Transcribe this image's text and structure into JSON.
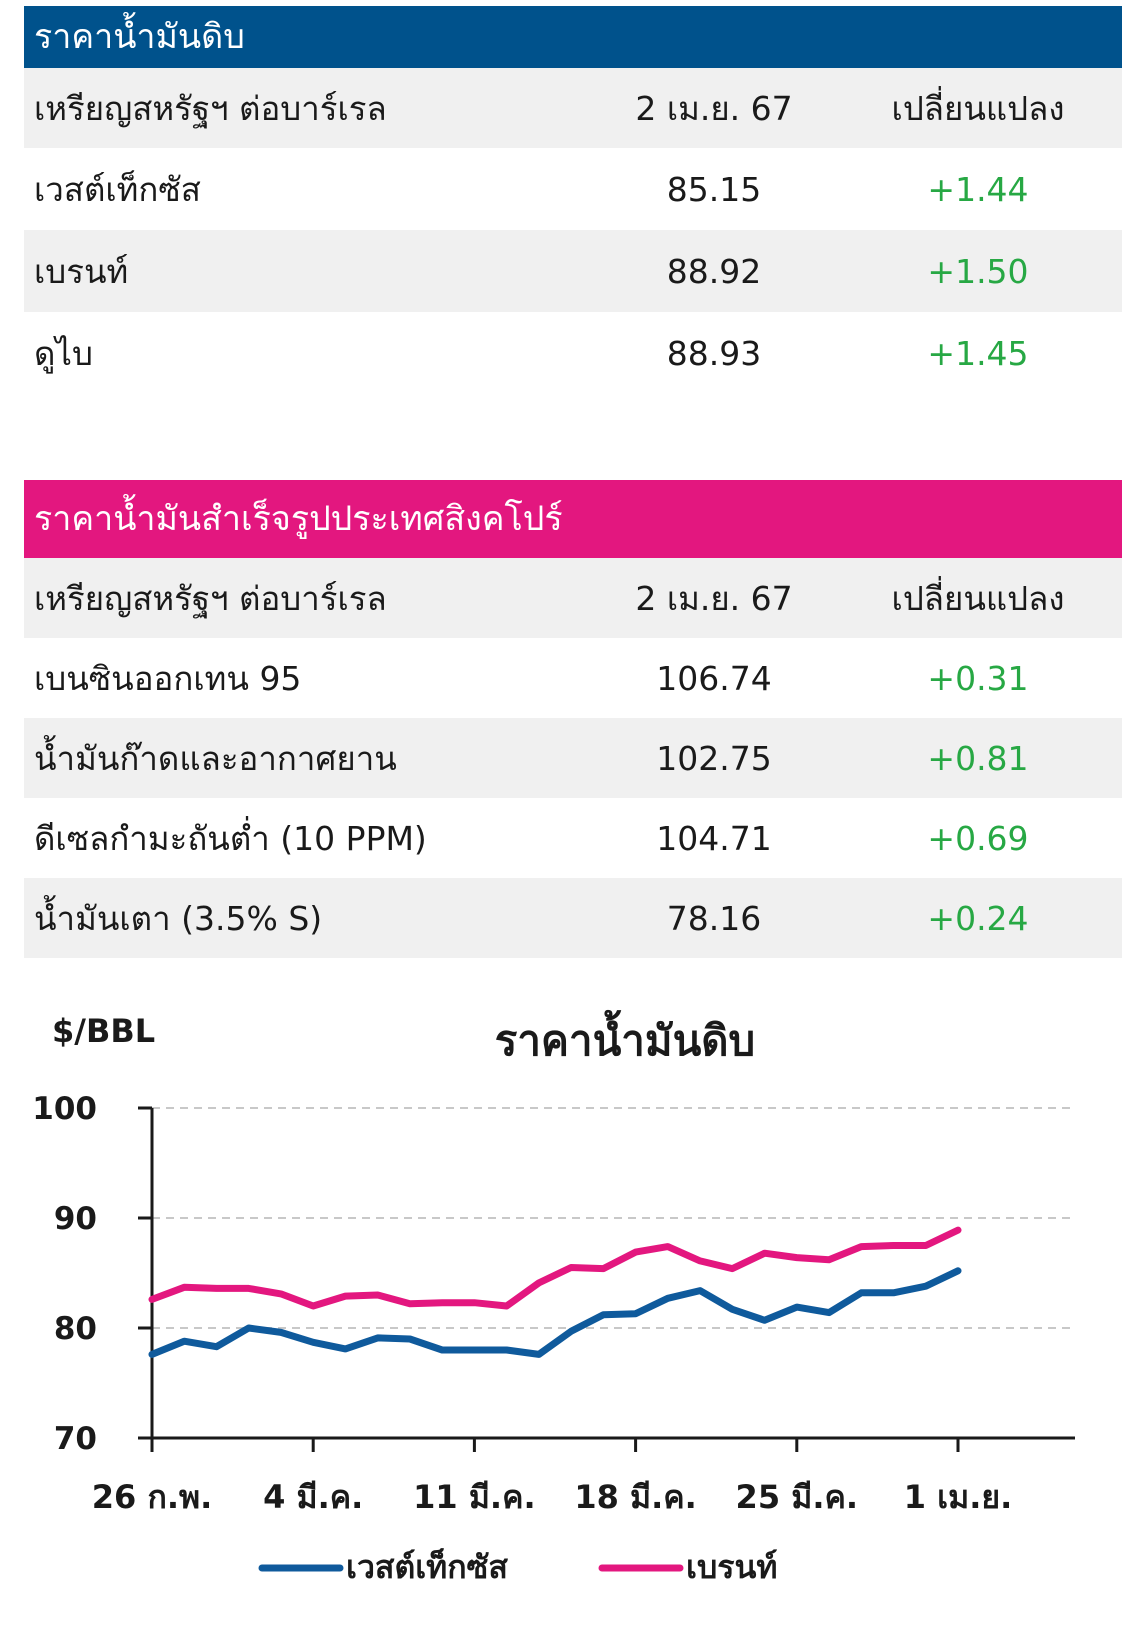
{
  "crude": {
    "title": "ราคาน้ำมันดิบ",
    "colhead": {
      "unit": "เหรียญสหรัฐฯ ต่อบาร์เรล",
      "date": "2 เม.ย. 67",
      "change": "เปลี่ยนแปลง"
    },
    "rows": [
      {
        "name": "เวสต์เท็กซัส",
        "price": "85.15",
        "change": "+1.44"
      },
      {
        "name": "เบรนท์",
        "price": "88.92",
        "change": "+1.50"
      },
      {
        "name": "ดูไบ",
        "price": "88.93",
        "change": "+1.45"
      }
    ]
  },
  "refined": {
    "title": "ราคาน้ำมันสำเร็จรูปประเทศสิงคโปร์",
    "colhead": {
      "unit": "เหรียญสหรัฐฯ ต่อบาร์เรล",
      "date": "2 เม.ย. 67",
      "change": "เปลี่ยนแปลง"
    },
    "rows": [
      {
        "name": "เบนซินออกเทน 95",
        "price": "106.74",
        "change": "+0.31"
      },
      {
        "name": "น้ำมันก๊าดและอากาศยาน",
        "price": "102.75",
        "change": "+0.81"
      },
      {
        "name": "ดีเซลกำมะถันต่ำ (10 PPM)",
        "price": "104.71",
        "change": "+0.69"
      },
      {
        "name": "น้ำมันเตา (3.5% S)",
        "price": "78.16",
        "change": "+0.24"
      }
    ]
  },
  "colors": {
    "crude_header": "#00528c",
    "refined_header": "#e3177f",
    "positive_change": "#27a844",
    "row_shade": "#f0f0f0"
  },
  "chart_data": {
    "type": "line",
    "title": "ราคาน้ำมันดิบ",
    "ylabel": "$/BBL",
    "xlabel": "",
    "ylim": [
      70,
      100
    ],
    "yticks": [
      70,
      80,
      90,
      100
    ],
    "xtick_labels": [
      "26 ก.พ.",
      "4 มี.ค.",
      "11 มี.ค.",
      "18 มี.ค.",
      "25 มี.ค.",
      "1 เม.ย."
    ],
    "grid": "horizontal dashed at 80, 90, 100",
    "legend": "bottom-center",
    "series": [
      {
        "name": "เวสต์เท็กซัส",
        "color": "#0f5a9c",
        "values": [
          77.6,
          78.8,
          78.3,
          80.0,
          79.6,
          78.7,
          78.1,
          79.1,
          79.0,
          78.0,
          78.0,
          78.0,
          77.6,
          79.7,
          81.2,
          81.3,
          82.7,
          83.4,
          81.7,
          80.7,
          81.9,
          81.4,
          83.2,
          83.2,
          83.8,
          85.2
        ]
      },
      {
        "name": "เบรนท์",
        "color": "#e3177f",
        "values": [
          82.6,
          83.7,
          83.6,
          83.6,
          83.1,
          82.0,
          82.9,
          83.0,
          82.2,
          82.3,
          82.3,
          82.0,
          84.1,
          85.5,
          85.4,
          86.9,
          87.4,
          86.1,
          85.4,
          86.8,
          86.4,
          86.2,
          87.4,
          87.5,
          87.5,
          88.9
        ]
      }
    ]
  }
}
